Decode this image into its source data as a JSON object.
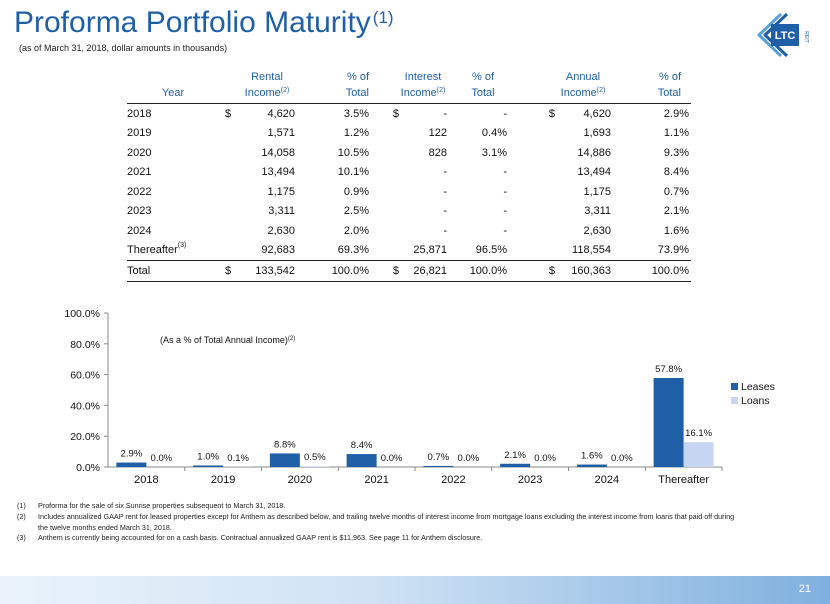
{
  "title": "Proforma Portfolio Maturity",
  "title_note": "(1)",
  "subtitle": "(as of March 31, 2018, dollar amounts in thousands)",
  "logo": {
    "text": "LTC",
    "subtext": "REIT",
    "color": "#1f5fa8"
  },
  "table": {
    "headers": {
      "year": "Year",
      "rental_l1": "Rental",
      "rental_l2": "Income",
      "rental_note": "(2)",
      "pct_l1": "% of",
      "pct_l2": "Total",
      "interest_l1": "Interest",
      "interest_l2": "Income",
      "interest_note": "(2)",
      "annual_l1": "Annual",
      "annual_l2": "Income",
      "annual_note": "(2)"
    },
    "rows": [
      {
        "year": "2018",
        "year_note": "",
        "rental_sym": "$",
        "rental": "4,620",
        "rental_pct": "3.5%",
        "interest_sym": "$",
        "interest": "-",
        "interest_pct": "-",
        "annual_sym": "$",
        "annual": "4,620",
        "annual_pct": "2.9%"
      },
      {
        "year": "2019",
        "year_note": "",
        "rental_sym": "",
        "rental": "1,571",
        "rental_pct": "1.2%",
        "interest_sym": "",
        "interest": "122",
        "interest_pct": "0.4%",
        "annual_sym": "",
        "annual": "1,693",
        "annual_pct": "1.1%"
      },
      {
        "year": "2020",
        "year_note": "",
        "rental_sym": "",
        "rental": "14,058",
        "rental_pct": "10.5%",
        "interest_sym": "",
        "interest": "828",
        "interest_pct": "3.1%",
        "annual_sym": "",
        "annual": "14,886",
        "annual_pct": "9.3%"
      },
      {
        "year": "2021",
        "year_note": "",
        "rental_sym": "",
        "rental": "13,494",
        "rental_pct": "10.1%",
        "interest_sym": "",
        "interest": "-",
        "interest_pct": "-",
        "annual_sym": "",
        "annual": "13,494",
        "annual_pct": "8.4%"
      },
      {
        "year": "2022",
        "year_note": "",
        "rental_sym": "",
        "rental": "1,175",
        "rental_pct": "0.9%",
        "interest_sym": "",
        "interest": "-",
        "interest_pct": "-",
        "annual_sym": "",
        "annual": "1,175",
        "annual_pct": "0.7%"
      },
      {
        "year": "2023",
        "year_note": "",
        "rental_sym": "",
        "rental": "3,311",
        "rental_pct": "2.5%",
        "interest_sym": "",
        "interest": "-",
        "interest_pct": "-",
        "annual_sym": "",
        "annual": "3,311",
        "annual_pct": "2.1%"
      },
      {
        "year": "2024",
        "year_note": "",
        "rental_sym": "",
        "rental": "2,630",
        "rental_pct": "2.0%",
        "interest_sym": "",
        "interest": "-",
        "interest_pct": "-",
        "annual_sym": "",
        "annual": "2,630",
        "annual_pct": "1.6%"
      },
      {
        "year": "Thereafter",
        "year_note": "(3)",
        "rental_sym": "",
        "rental": "92,683",
        "rental_pct": "69.3%",
        "interest_sym": "",
        "interest": "25,871",
        "interest_pct": "96.5%",
        "annual_sym": "",
        "annual": "118,554",
        "annual_pct": "73.9%"
      }
    ],
    "total": {
      "year": "Total",
      "year_note": "",
      "rental_sym": "$",
      "rental": "133,542",
      "rental_pct": "100.0%",
      "interest_sym": "$",
      "interest": "26,821",
      "interest_pct": "100.0%",
      "annual_sym": "$",
      "annual": "160,363",
      "annual_pct": "100.0%"
    }
  },
  "chart_data": {
    "type": "bar",
    "annotation": "(As a % of Total Annual Income)",
    "annotation_note": "(2)",
    "categories": [
      "2018",
      "2019",
      "2020",
      "2021",
      "2022",
      "2023",
      "2024",
      "Thereafter"
    ],
    "series": [
      {
        "name": "Leases",
        "color": "#1f5fa8",
        "values": [
          2.9,
          1.0,
          8.8,
          8.4,
          0.7,
          2.1,
          1.6,
          57.8
        ],
        "labels": [
          "2.9%",
          "1.0%",
          "8.8%",
          "8.4%",
          "0.7%",
          "2.1%",
          "1.6%",
          "57.8%"
        ]
      },
      {
        "name": "Loans",
        "color": "#c6d6f2",
        "values": [
          0.0,
          0.1,
          0.5,
          0.0,
          0.0,
          0.0,
          0.0,
          16.1
        ],
        "labels": [
          "0.0%",
          "0.1%",
          "0.5%",
          "0.0%",
          "0.0%",
          "0.0%",
          "0.0%",
          "16.1%"
        ]
      }
    ],
    "yticks": [
      0,
      20,
      40,
      60,
      80,
      100
    ],
    "ytick_labels": [
      "0.0%",
      "20.0%",
      "40.0%",
      "60.0%",
      "80.0%",
      "100.0%"
    ],
    "ylim": [
      0,
      100
    ],
    "legend": "right",
    "grid": false
  },
  "footnotes": [
    {
      "num": "(1)",
      "text": "Proforma for the sale of six Sunrise properties subsequent to March 31, 2018."
    },
    {
      "num": "(2)",
      "text": "Includes annualized GAAP rent for leased properties except for Anthem as described below, and trailing twelve months of interest income from mortgage loans excluding the interest income from loans that paid off during the twelve months ended March 31, 2018."
    },
    {
      "num": "(3)",
      "text": "Anthem is currently being accounted for on a cash basis.  Contractual annualized GAAP rent is $11,963.  See page 11 for Anthem disclosure."
    }
  ],
  "page_number": "21"
}
